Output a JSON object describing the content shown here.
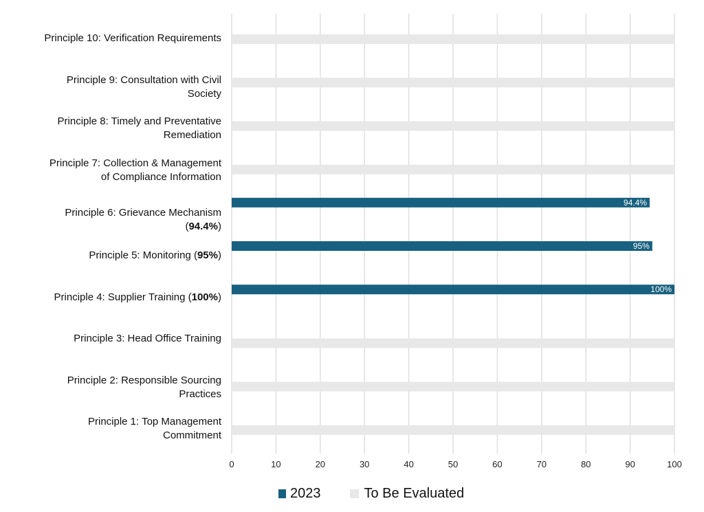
{
  "chart_data": {
    "type": "bar",
    "orientation": "horizontal",
    "categories": [
      [
        [
          [
            "Principle 10: Verification Requirements",
            false
          ]
        ]
      ],
      [
        [
          [
            "Principle 9: Consultation with Civil",
            false
          ]
        ],
        [
          [
            "Society",
            false
          ]
        ]
      ],
      [
        [
          [
            "Principle 8: Timely and Preventative",
            false
          ]
        ],
        [
          [
            "Remediation",
            false
          ]
        ]
      ],
      [
        [
          [
            "Principle 7: Collection & Management",
            false
          ]
        ],
        [
          [
            "of Compliance Information",
            false
          ]
        ]
      ],
      [
        [
          [
            "Principle 6: Grievance Mechanism",
            false
          ]
        ],
        [
          [
            "(",
            false
          ],
          [
            "94.4%",
            true
          ],
          [
            ")",
            false
          ]
        ]
      ],
      [
        [
          [
            "Principle 5: Monitoring (",
            false
          ],
          [
            "95%",
            true
          ],
          [
            ")",
            false
          ]
        ]
      ],
      [
        [
          [
            "Principle 4: Supplier Training (",
            false
          ],
          [
            "100%",
            true
          ],
          [
            ")",
            false
          ]
        ]
      ],
      [
        [
          [
            "Principle 3: Head Office Training",
            false
          ]
        ]
      ],
      [
        [
          [
            "Principle 2: Responsible Sourcing",
            false
          ]
        ],
        [
          [
            "Practices",
            false
          ]
        ]
      ],
      [
        [
          [
            "Principle 1: Top Management",
            false
          ]
        ],
        [
          [
            "Commitment",
            false
          ]
        ]
      ]
    ],
    "series": [
      {
        "name": "2023",
        "color": "#17607f",
        "values": [
          null,
          null,
          null,
          null,
          94.4,
          95,
          100,
          null,
          null,
          null
        ],
        "data_labels": [
          "",
          "",
          "",
          "",
          "94.4%",
          "95%",
          "100%",
          "",
          "",
          ""
        ]
      },
      {
        "name": "To Be Evaluated",
        "color": "#e8e8e8",
        "values": [
          100,
          100,
          100,
          100,
          null,
          null,
          null,
          100,
          100,
          100
        ]
      }
    ],
    "xlim": [
      0,
      100
    ],
    "xticks": [
      "0",
      "10",
      "20",
      "30",
      "40",
      "50",
      "60",
      "70",
      "80",
      "90",
      "100"
    ],
    "grid": true,
    "legend": "bottom"
  }
}
